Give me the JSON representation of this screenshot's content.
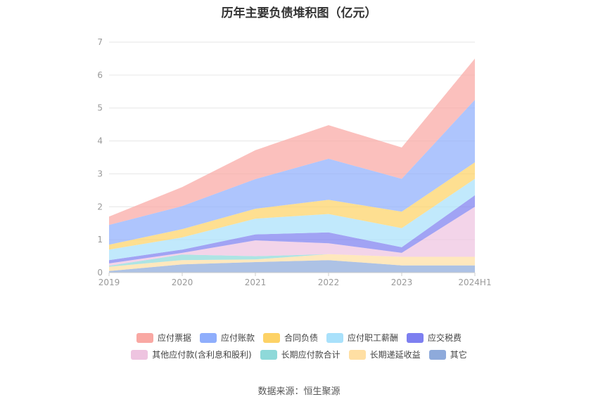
{
  "chart_data": {
    "type": "area",
    "stacked": true,
    "title": "历年主要负债堆积图（亿元）",
    "categories": [
      "2019",
      "2020",
      "2021",
      "2022",
      "2023",
      "2024H1"
    ],
    "ylim": [
      0,
      7
    ],
    "yticks": [
      "0",
      "1",
      "2",
      "3",
      "4",
      "5",
      "6",
      "7"
    ],
    "grid": true,
    "legend_position": "bottom",
    "series": [
      {
        "name": "其它",
        "color": "#8eaadb",
        "values": [
          0.05,
          0.25,
          0.32,
          0.38,
          0.22,
          0.22
        ]
      },
      {
        "name": "长期递延收益",
        "color": "#ffdfa3",
        "values": [
          0.13,
          0.13,
          0.08,
          0.18,
          0.26,
          0.26
        ]
      },
      {
        "name": "长期应付款合计",
        "color": "#8ed9d9",
        "values": [
          0.03,
          0.17,
          0.1,
          0.0,
          0.0,
          0.0
        ]
      },
      {
        "name": "其他应付款(含利息和股利)",
        "color": "#eec4e0",
        "values": [
          0.07,
          0.05,
          0.48,
          0.33,
          0.12,
          1.52
        ]
      },
      {
        "name": "应交税费",
        "color": "#7d7ff0",
        "values": [
          0.1,
          0.1,
          0.18,
          0.33,
          0.17,
          0.35
        ]
      },
      {
        "name": "应付职工薪酬",
        "color": "#a9e1fb",
        "values": [
          0.32,
          0.37,
          0.48,
          0.56,
          0.58,
          0.5
        ]
      },
      {
        "name": "合同负债",
        "color": "#fdd266",
        "values": [
          0.15,
          0.25,
          0.3,
          0.43,
          0.5,
          0.5
        ]
      },
      {
        "name": "应付账款",
        "color": "#8faefc",
        "values": [
          0.6,
          0.7,
          0.9,
          1.25,
          1.0,
          1.9
        ]
      },
      {
        "name": "应付票据",
        "color": "#f9a8a3",
        "values": [
          0.25,
          0.58,
          0.88,
          1.02,
          0.95,
          1.25
        ]
      }
    ]
  },
  "legend": {
    "row1": [
      {
        "label": "应付票据",
        "color": "#f9a8a3"
      },
      {
        "label": "应付账款",
        "color": "#8faefc"
      },
      {
        "label": "合同负债",
        "color": "#fdd266"
      },
      {
        "label": "应付职工薪酬",
        "color": "#a9e1fb"
      },
      {
        "label": "应交税费",
        "color": "#7d7ff0"
      }
    ],
    "row2": [
      {
        "label": "其他应付款(含利息和股利)",
        "color": "#eec4e0"
      },
      {
        "label": "长期应付款合计",
        "color": "#8ed9d9"
      },
      {
        "label": "长期递延收益",
        "color": "#ffdfa3"
      },
      {
        "label": "其它",
        "color": "#8eaadb"
      }
    ]
  },
  "source": "数据来源：恒生聚源"
}
